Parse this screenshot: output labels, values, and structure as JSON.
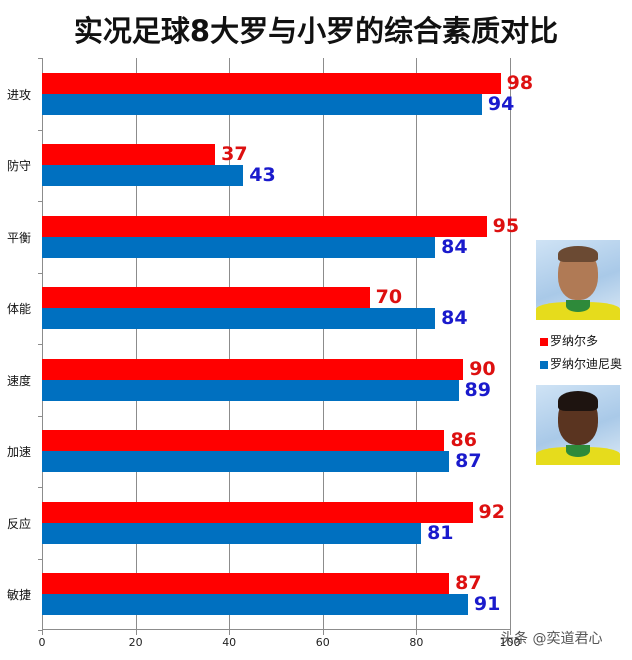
{
  "title": "实况足球8大罗与小罗的综合素质对比",
  "colors": {
    "series_red": "#ff0000",
    "series_blue": "#0070c0",
    "label_red": "#dd1010",
    "label_blue": "#1a1acc",
    "grid": "#8c8c8c"
  },
  "legend": {
    "items": [
      {
        "label": "罗纳尔多",
        "color": "#ff0000"
      },
      {
        "label": "罗纳尔迪尼奥",
        "color": "#0070c0"
      }
    ]
  },
  "photos": [
    {
      "name": "罗纳尔多",
      "icon": "player-portrait-ronaldo"
    },
    {
      "name": "罗纳尔迪尼奥",
      "icon": "player-portrait-ronaldinho"
    }
  ],
  "watermark": "头条 @奕道君心",
  "x_axis": {
    "ticks": [
      "0",
      "20",
      "40",
      "60",
      "80",
      "100"
    ]
  },
  "chart_data": {
    "type": "bar",
    "orientation": "horizontal",
    "title": "实况足球8大罗与小罗的综合素质对比",
    "xlabel": "",
    "ylabel": "",
    "xlim": [
      0,
      100
    ],
    "grid": true,
    "legend_position": "right",
    "categories": [
      "进攻",
      "防守",
      "平衡",
      "体能",
      "速度",
      "加速",
      "反应",
      "敏捷"
    ],
    "series": [
      {
        "name": "罗纳尔多",
        "color": "#ff0000",
        "values": [
          98,
          37,
          95,
          70,
          90,
          86,
          92,
          87
        ]
      },
      {
        "name": "罗纳尔迪尼奥",
        "color": "#0070c0",
        "values": [
          94,
          43,
          84,
          84,
          89,
          87,
          81,
          91
        ]
      }
    ]
  }
}
